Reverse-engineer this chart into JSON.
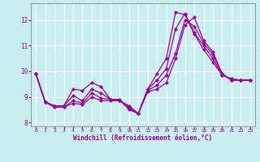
{
  "xlabel": "Windchill (Refroidissement éolien,°C)",
  "background_color": "#c8eef0",
  "line_color": "#990099",
  "grid_color": "#ffffff",
  "xlim": [
    -0.5,
    23.5
  ],
  "ylim": [
    7.85,
    12.65
  ],
  "yticks": [
    8,
    9,
    10,
    11,
    12
  ],
  "xticks": [
    0,
    1,
    2,
    3,
    4,
    5,
    6,
    7,
    8,
    9,
    10,
    11,
    12,
    13,
    14,
    15,
    16,
    17,
    18,
    19,
    20,
    21,
    22,
    23
  ],
  "lines": [
    [
      9.9,
      8.8,
      8.65,
      8.65,
      9.3,
      9.25,
      9.55,
      9.4,
      8.9,
      8.9,
      8.5,
      8.35,
      9.3,
      9.9,
      10.5,
      12.3,
      12.2,
      11.45,
      10.85,
      10.35,
      9.85,
      9.7,
      9.65,
      9.65
    ],
    [
      9.9,
      8.8,
      8.65,
      8.65,
      9.05,
      8.85,
      9.3,
      9.15,
      8.9,
      8.85,
      8.55,
      8.35,
      9.3,
      9.65,
      10.1,
      11.65,
      12.25,
      11.5,
      11.0,
      10.5,
      9.85,
      9.7,
      9.65,
      9.65
    ],
    [
      9.9,
      8.8,
      8.6,
      8.6,
      8.85,
      8.75,
      9.15,
      8.95,
      8.9,
      8.85,
      8.6,
      8.35,
      9.25,
      9.45,
      9.85,
      10.7,
      12.0,
      11.75,
      11.1,
      10.65,
      9.9,
      9.65,
      9.65,
      9.65
    ],
    [
      9.9,
      8.8,
      8.6,
      8.6,
      8.75,
      8.7,
      9.0,
      8.85,
      8.85,
      8.85,
      8.65,
      8.35,
      9.2,
      9.3,
      9.55,
      10.5,
      11.8,
      12.1,
      11.2,
      10.75,
      9.9,
      9.65,
      9.65,
      9.65
    ]
  ]
}
